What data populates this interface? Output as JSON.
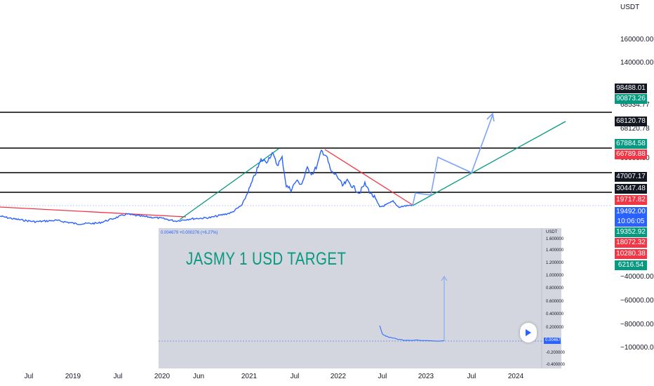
{
  "axis_unit": "USDT",
  "chart_data": {
    "type": "line",
    "x_ticks": [
      "Jul",
      "2019",
      "Jul",
      "2020",
      "Jun",
      "2021",
      "Jul",
      "2022",
      "Jul",
      "2023",
      "Jul",
      "2024"
    ],
    "y_ticks": [
      {
        "value": "160000.00",
        "y": 0
      },
      {
        "value": "140000.00",
        "y": 0
      },
      {
        "value": "68534.77",
        "y": 0
      },
      {
        "value": "68120.78",
        "y": 0
      },
      {
        "value": "60000.00",
        "y": 0
      },
      {
        "value": "−40000.00",
        "y": 0
      },
      {
        "value": "−60000.00",
        "y": 0
      },
      {
        "value": "−80000.00",
        "y": 0
      },
      {
        "value": "−100000.00",
        "y": 0
      }
    ],
    "price_tags": [
      {
        "value": "98488.01",
        "color": "#131722"
      },
      {
        "value": "90873.26",
        "color": "#089981"
      },
      {
        "value": "68120.78",
        "color": "#131722"
      },
      {
        "value": "67884.58",
        "color": "#089981"
      },
      {
        "value": "66789.88",
        "color": "#f23645"
      },
      {
        "value": "47007.17",
        "color": "#131722"
      },
      {
        "value": "30447.48",
        "color": "#131722"
      },
      {
        "value": "19717.82",
        "color": "#f23645"
      },
      {
        "value": "19492.00",
        "color": "#2962ff"
      },
      {
        "value": "10:06:05",
        "color": "#2962ff"
      },
      {
        "value": "19352.92",
        "color": "#089981"
      },
      {
        "value": "18072.32",
        "color": "#f23645"
      },
      {
        "value": "10280.38",
        "color": "#f23645"
      },
      {
        "value": "6216.54",
        "color": "#089981"
      }
    ],
    "horizontal_levels": [
      "68120.78",
      "66789.88",
      "47007.17",
      "19717.82"
    ]
  },
  "inset": {
    "header": "0.004679 +0.000276 (+6.27%)",
    "unit": "USDT",
    "title": "JASMY 1 USD TARGET",
    "y_ticks": [
      "1.600000",
      "1.400000",
      "1.200000",
      "1.000000",
      "0.800000",
      "0.600000",
      "0.400000",
      "0.200000",
      "0.004679",
      "-0.200000",
      "-0.400000"
    ],
    "current_price": "0.004679"
  },
  "colors": {
    "price_line": "#2962ff",
    "trend_green": "#089981",
    "trend_red": "#f23645",
    "inset_bg": "#d1d4dc",
    "title": "#089981"
  }
}
